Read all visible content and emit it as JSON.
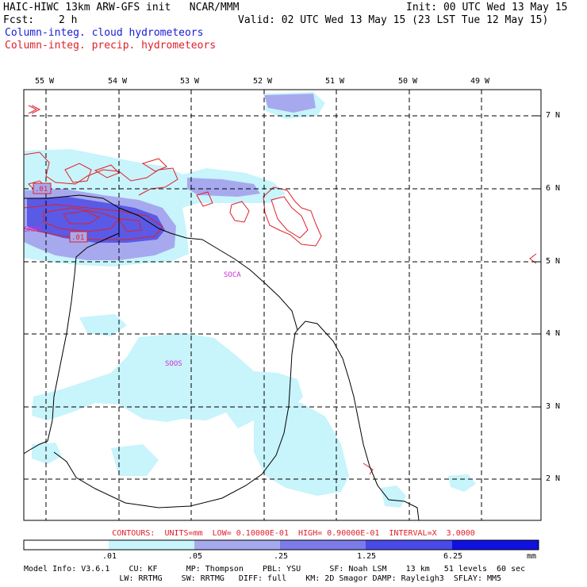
{
  "header": {
    "title_left": "HAIC-HIWC 13km ARW-GFS init   NCAR/MMM",
    "init": "Init: 00 UTC Wed 13 May 15",
    "fcst_label": "Fcst:",
    "fcst_value": "2 h",
    "valid": "Valid: 02 UTC Wed 13 May 15 (23 LST Tue 12 May 15)",
    "legend_cloud": "Column-integ. cloud hydrometeors",
    "legend_precip": "Column-integ. precip. hydrometeors"
  },
  "map": {
    "lon_labels": [
      "55 W",
      "54 W",
      "53 W",
      "52 W",
      "51 W",
      "50 W",
      "49 W"
    ],
    "lat_labels": [
      "7 N",
      "6 N",
      "5 N",
      "4 N",
      "3 N",
      "2 N"
    ],
    "station_labels": [
      "SMPM",
      "SOCA",
      "SOOS"
    ],
    "contour_labels": [
      ".01",
      ".01"
    ],
    "colors": {
      "cloud_light": "#c8f4fb",
      "cloud_mid": "#a7a9ee",
      "cloud_dark": "#5a5ae6",
      "precip": "#e0202a",
      "station": "#d42ad4"
    }
  },
  "contours_line": "CONTOURS:  UNITS=mm  LOW= 0.10000E-01  HIGH= 0.90000E-01  INTERVAL=X  3.0000",
  "scale": {
    "labels": [
      ".01",
      ".05",
      ".25",
      "1.25",
      "6.25"
    ],
    "unit": "mm",
    "colors": [
      "#ffffff",
      "#c8f4fb",
      "#a7a9ee",
      "#7b7be9",
      "#4a4ae8",
      "#1010e0"
    ]
  },
  "model_info": {
    "line1": "Model Info: V3.6.1    CU: KF      MP: Thompson    PBL: YSU      SF: Noah LSM    13 km   51 levels  60 sec",
    "line2": "                    LW: RRTMG    SW: RRTMG   DIFF: full    KM: 2D Smagor DAMP: Rayleigh3  SFLAY: MM5"
  }
}
